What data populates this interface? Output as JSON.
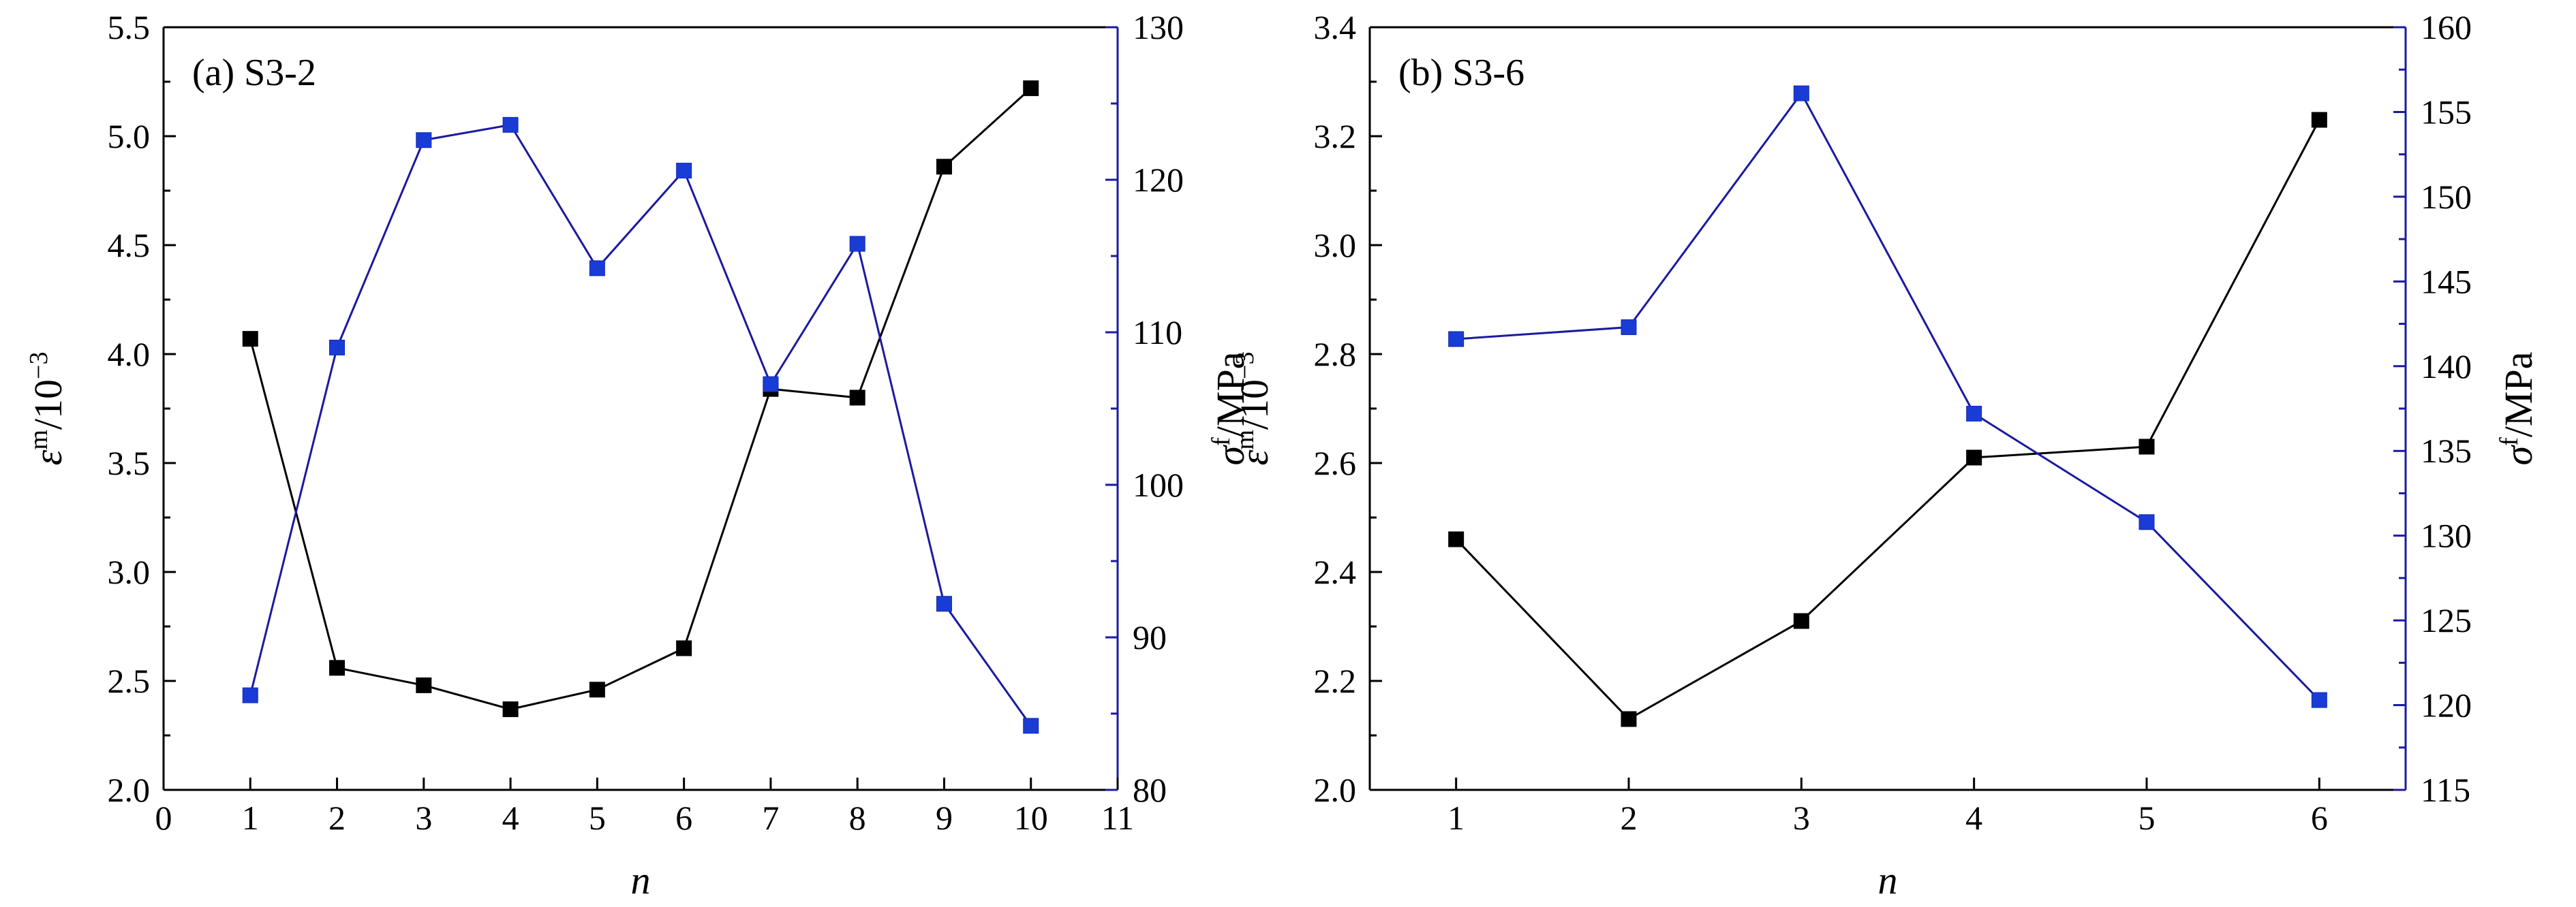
{
  "colors": {
    "left": "#000000",
    "right": "#1a3cd6",
    "right_axis": "#1a1aa0"
  },
  "chart_data": [
    {
      "type": "line",
      "label": "(a) S3-2",
      "xlabel": "n",
      "ylabel_left": {
        "symbol": "ε",
        "sup": "m",
        "unit": "/10",
        "unit_sup": "−3"
      },
      "ylabel_right": {
        "symbol": "σ",
        "sup": "f",
        "unit": "/MPa"
      },
      "xlim": [
        0,
        11
      ],
      "xticks": [
        0,
        1,
        2,
        3,
        4,
        5,
        6,
        7,
        8,
        9,
        10,
        11
      ],
      "ylim_left": [
        2.0,
        5.5
      ],
      "yticks_left": [
        "2.0",
        "2.5",
        "3.0",
        "3.5",
        "4.0",
        "4.5",
        "5.0",
        "5.5"
      ],
      "ylim_right": [
        80,
        130
      ],
      "yticks_right": [
        "80",
        "90",
        "100",
        "110",
        "120",
        "130"
      ],
      "series": [
        {
          "name": "ε^m",
          "axis": "left",
          "x": [
            1,
            2,
            3,
            4,
            5,
            6,
            7,
            8,
            9,
            10
          ],
          "values": [
            4.07,
            2.56,
            2.48,
            2.37,
            2.46,
            2.65,
            3.84,
            3.8,
            4.86,
            5.22
          ]
        },
        {
          "name": "σ^f",
          "axis": "right",
          "x": [
            1,
            2,
            3,
            4,
            5,
            6,
            7,
            8,
            9,
            10
          ],
          "values": [
            86.2,
            109.0,
            122.6,
            123.6,
            114.2,
            120.6,
            106.6,
            115.8,
            92.2,
            84.2
          ]
        }
      ]
    },
    {
      "type": "line",
      "label": "(b) S3-6",
      "xlabel": "n",
      "ylabel_left": {
        "symbol": "ε",
        "sup": "m",
        "unit": "/10",
        "unit_sup": "−3"
      },
      "ylabel_right": {
        "symbol": "σ",
        "sup": "f",
        "unit": "/MPa"
      },
      "xlim": [
        0.5,
        6.5
      ],
      "xticks": [
        1,
        2,
        3,
        4,
        5,
        6
      ],
      "ylim_left": [
        2.0,
        3.4
      ],
      "yticks_left": [
        "2.0",
        "2.2",
        "2.4",
        "2.6",
        "2.8",
        "3.0",
        "3.2",
        "3.4"
      ],
      "ylim_right": [
        115,
        160
      ],
      "yticks_right": [
        "115",
        "120",
        "125",
        "130",
        "135",
        "140",
        "145",
        "150",
        "155",
        "160"
      ],
      "series": [
        {
          "name": "ε^m",
          "axis": "left",
          "x": [
            1,
            2,
            3,
            4,
            5,
            6
          ],
          "values": [
            2.46,
            2.13,
            2.31,
            2.61,
            2.63,
            3.23
          ]
        },
        {
          "name": "σ^f",
          "axis": "right",
          "x": [
            1,
            2,
            3,
            4,
            5,
            6
          ],
          "values": [
            141.6,
            142.3,
            156.1,
            137.2,
            130.8,
            120.3
          ]
        }
      ]
    }
  ]
}
